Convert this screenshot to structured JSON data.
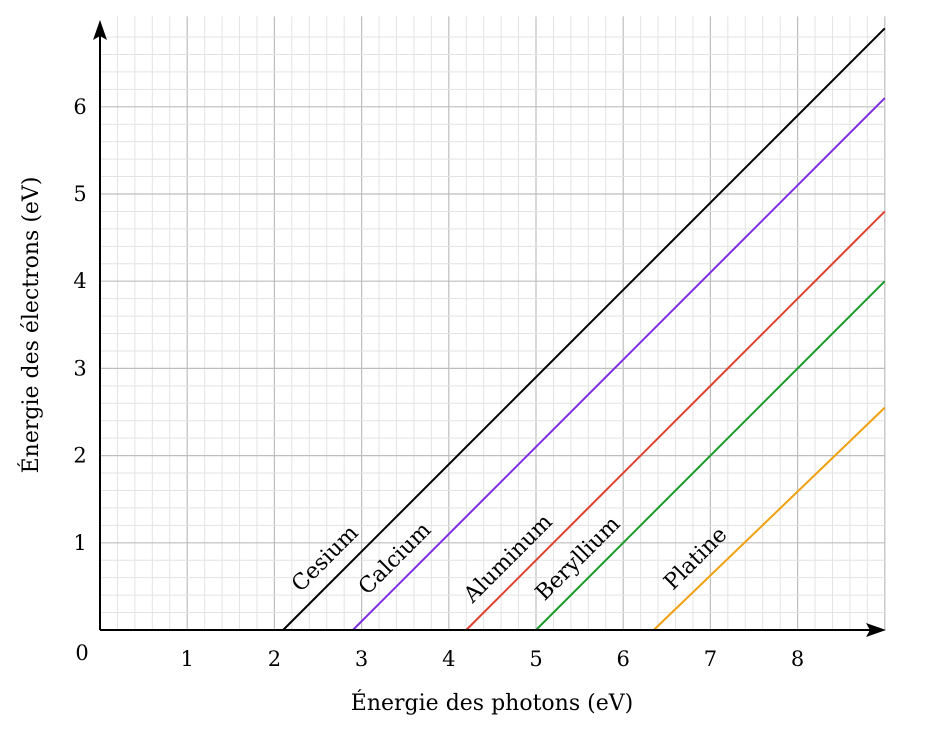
{
  "chart_data": {
    "type": "line",
    "xlabel": "Énergie des photons (eV)",
    "ylabel": "Énergie des électrons (eV)",
    "origin_label": "0",
    "xlim": [
      0,
      9
    ],
    "ylim": [
      0,
      6.9
    ],
    "x_ticks": [
      "1",
      "2",
      "3",
      "4",
      "5",
      "6",
      "7",
      "8"
    ],
    "y_ticks": [
      "1",
      "2",
      "3",
      "4",
      "5",
      "6"
    ],
    "grid": "on",
    "series": [
      {
        "name": "Cesium",
        "color": "#000000",
        "x": [
          2.1,
          9
        ],
        "y": [
          0,
          6.9
        ]
      },
      {
        "name": "Calcium",
        "color": "#7b2ee0",
        "x": [
          2.9,
          9
        ],
        "y": [
          0,
          6.1
        ]
      },
      {
        "name": "Aluminum",
        "color": "#e0402e",
        "x": [
          4.2,
          9
        ],
        "y": [
          0,
          4.8
        ]
      },
      {
        "name": "Beryllium",
        "color": "#1a9a2a",
        "x": [
          5.0,
          9
        ],
        "y": [
          0,
          4.0
        ]
      },
      {
        "name": "Platine",
        "color": "#f0a010",
        "x": [
          6.35,
          9
        ],
        "y": [
          0,
          2.55
        ]
      }
    ]
  }
}
